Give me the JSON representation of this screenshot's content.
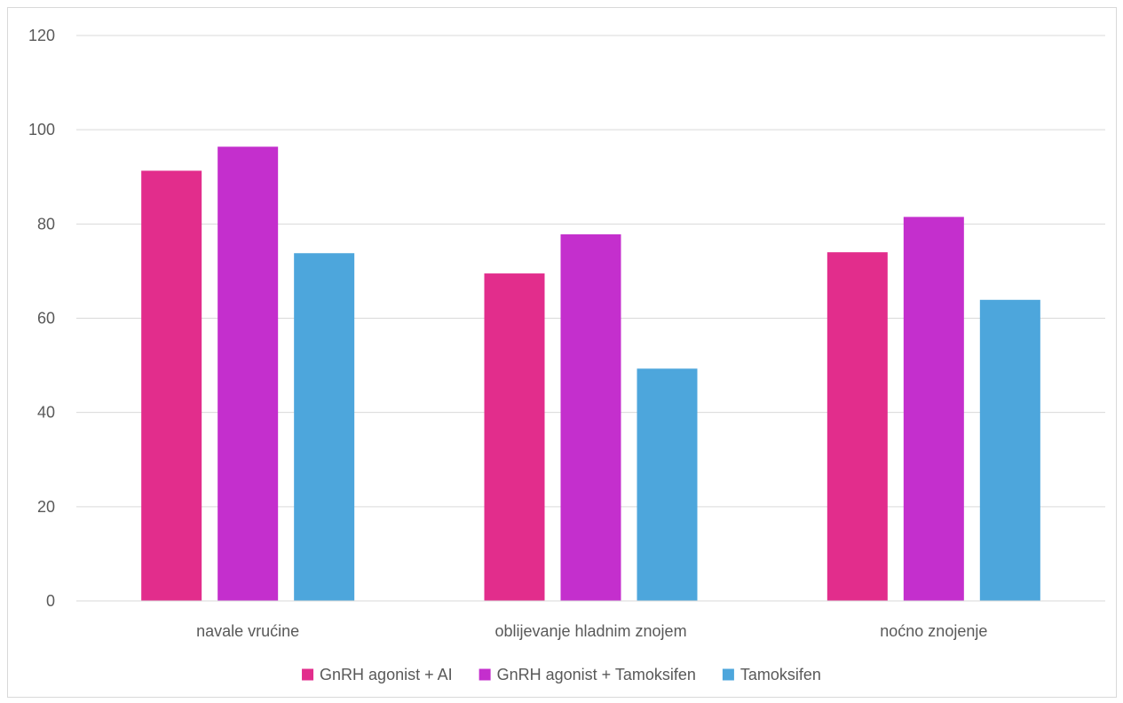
{
  "chart_data": {
    "type": "bar",
    "categories": [
      "navale vrućine",
      "oblijevanje hladnim znojem",
      "noćno znojenje"
    ],
    "series": [
      {
        "name": "GnRH agonist + AI",
        "values": [
          91.3,
          69.5,
          74.0
        ],
        "color": "#e22d8c"
      },
      {
        "name": "GnRH agonist + Tamoksifen",
        "values": [
          96.4,
          77.8,
          81.5
        ],
        "color": "#c42fcd"
      },
      {
        "name": "Tamoksifen",
        "values": [
          73.8,
          49.3,
          63.9
        ],
        "color": "#4da6dc"
      }
    ],
    "ylim": [
      0,
      120
    ],
    "yticks": [
      0,
      20,
      40,
      60,
      80,
      100,
      120
    ],
    "grid": true,
    "legend_position": "bottom"
  }
}
